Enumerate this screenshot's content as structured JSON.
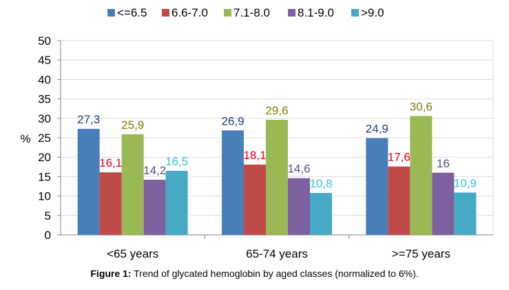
{
  "chart_data": {
    "type": "bar",
    "categories": [
      "<65 years",
      "65-74 years",
      ">=75 years"
    ],
    "series": [
      {
        "name": "<=6.5",
        "values": [
          27.3,
          26.9,
          24.9
        ],
        "labels": [
          "27,3",
          "26,9",
          "24,9"
        ],
        "color": "#4A7EBB",
        "label_color": "#1F3A7A"
      },
      {
        "name": "6.6-7.0",
        "values": [
          16.1,
          18.1,
          17.6
        ],
        "labels": [
          "16,1",
          "18,1",
          "17,6"
        ],
        "color": "#BE4B48",
        "label_color": "#E8001C"
      },
      {
        "name": "7.1-8.0",
        "values": [
          25.9,
          29.6,
          30.6
        ],
        "labels": [
          "25,9",
          "29,6",
          "30,6"
        ],
        "color": "#98B954",
        "label_color": "#7F7A00"
      },
      {
        "name": "8.1-9.0",
        "values": [
          14.2,
          14.6,
          16.0
        ],
        "labels": [
          "14,2",
          "14,6",
          "16"
        ],
        "color": "#7D60A0",
        "label_color": "#5B4A8C"
      },
      {
        "name": ">9.0",
        "values": [
          16.5,
          10.8,
          10.9
        ],
        "labels": [
          "16,5",
          "10,8",
          "10,9"
        ],
        "color": "#46AAC5",
        "label_color": "#2FC4D6"
      }
    ],
    "ylabel": "%",
    "ylim": [
      0,
      50
    ],
    "yticks": [
      0,
      5,
      10,
      15,
      20,
      25,
      30,
      35,
      40,
      45,
      50
    ],
    "grid": true,
    "legend_position": "top"
  },
  "caption": {
    "label": "Figure 1:",
    "text": " Trend of glycated hemoglobin by aged classes (normalized to 6%)."
  }
}
